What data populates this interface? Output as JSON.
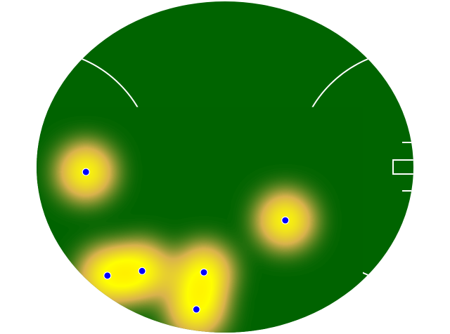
{
  "chart_data": {
    "type": "scatter",
    "x": [
      13.1,
      66.0,
      18.8,
      28.0,
      44.4,
      42.4
    ],
    "y": [
      48.5,
      33.9,
      17.2,
      18.6,
      18.2,
      7.0
    ],
    "xlim": [
      0,
      100
    ],
    "ylim": [
      0,
      100
    ],
    "color": "#0000ff",
    "field_color": "#006400",
    "heatmap": true
  }
}
